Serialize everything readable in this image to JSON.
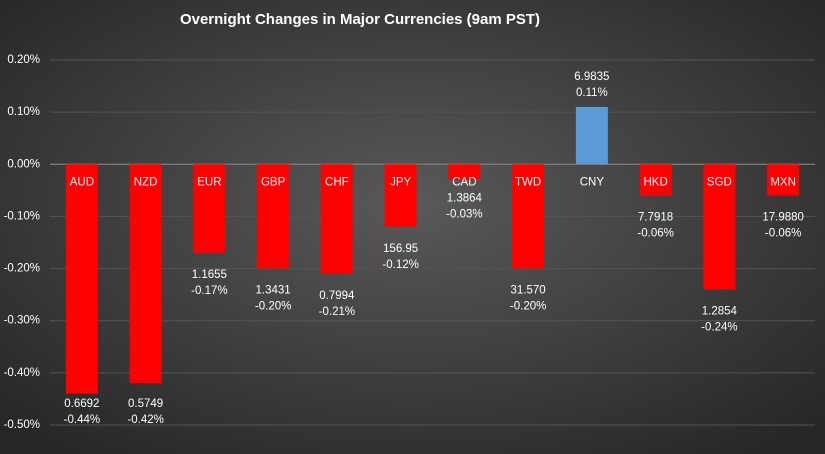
{
  "chart_data": {
    "type": "bar",
    "title": "Overnight Changes in Major Currencies (9am PST)",
    "categories": [
      "AUD",
      "NZD",
      "EUR",
      "GBP",
      "CHF",
      "JPY",
      "CAD",
      "TWD",
      "CNY",
      "HKD",
      "SGD",
      "MXN"
    ],
    "values": [
      -0.44,
      -0.42,
      -0.17,
      -0.2,
      -0.21,
      -0.12,
      -0.03,
      -0.2,
      0.11,
      -0.06,
      -0.24,
      -0.06
    ],
    "value_labels": [
      "-0.44%",
      "-0.42%",
      "-0.17%",
      "-0.20%",
      "-0.21%",
      "-0.12%",
      "-0.03%",
      "-0.20%",
      "0.11%",
      "-0.06%",
      "-0.24%",
      "-0.06%"
    ],
    "rates": [
      "0.6692",
      "0.5749",
      "1.1655",
      "1.3431",
      "0.7994",
      "156.95",
      "1.3864",
      "31.570",
      "6.9835",
      "7.7918",
      "1.2854",
      "17.9880"
    ],
    "negative_color": "#ff0000",
    "positive_color": "#5b9bd5",
    "ylim": [
      -0.5,
      0.2
    ],
    "yticks": [
      {
        "value": 0.2,
        "label": "0.20%"
      },
      {
        "value": 0.1,
        "label": "0.10%"
      },
      {
        "value": 0,
        "label": "0.00%"
      },
      {
        "value": -0.1,
        "label": "-0.10%"
      },
      {
        "value": -0.2,
        "label": "-0.20%"
      },
      {
        "value": -0.3,
        "label": "-0.30%"
      },
      {
        "value": -0.4,
        "label": "-0.40%"
      },
      {
        "value": -0.5,
        "label": "-0.50%"
      }
    ],
    "grid": true
  }
}
